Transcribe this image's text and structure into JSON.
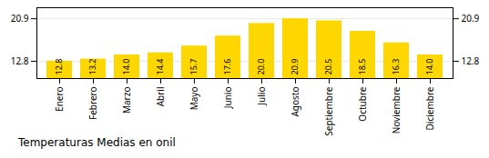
{
  "chart_data": {
    "type": "bar",
    "title": "Temperaturas Medias en onil",
    "categories": [
      "Enero",
      "Febrero",
      "Marzo",
      "Abril",
      "Mayo",
      "Junio",
      "Julio",
      "Agosto",
      "Septiembre",
      "Octubre",
      "Noviembre",
      "Diciembre"
    ],
    "values": [
      12.8,
      13.2,
      14.0,
      14.4,
      15.7,
      17.6,
      20.0,
      20.9,
      20.5,
      18.5,
      16.3,
      14.0
    ],
    "value_labels": [
      "12.8",
      "13.2",
      "14.0",
      "14.4",
      "15.7",
      "17.6",
      "20.0",
      "20.9",
      "20.5",
      "18.5",
      "16.3",
      "14.0"
    ],
    "color": "#FFD700",
    "ylim": [
      9.5,
      23.0
    ],
    "yticks": [
      12.8,
      20.9
    ],
    "grid": true,
    "data_labels": true
  }
}
